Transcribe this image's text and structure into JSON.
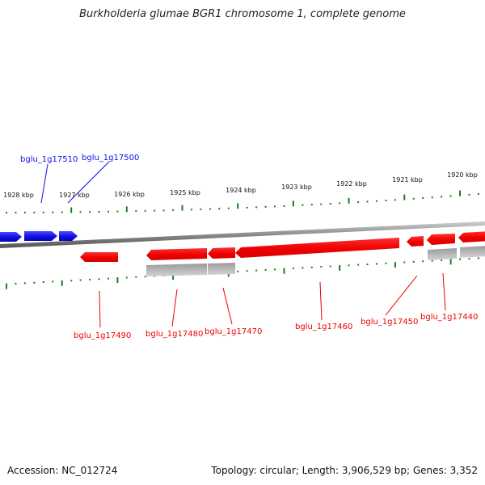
{
  "title": "Burkholderia glumae BGR1 chromosome 1, complete genome",
  "footer": {
    "accession": "Accession: NC_012724",
    "summary": "Topology: circular; Length: 3,906,529 bp; Genes: 3,352"
  },
  "colors": {
    "forward_gene": "#1010e8",
    "reverse_gene": "#ee0000",
    "cds_feature": "#b4b4b4",
    "ticks": "#1f7a1f",
    "backbone": "#808080"
  },
  "scale_labels": [
    "1928 kbp",
    "1927 kbp",
    "1926 kbp",
    "1925 kbp",
    "1924 kbp",
    "1923 kbp",
    "1922 kbp",
    "1921 kbp",
    "1920 kbp"
  ],
  "gene_labels": {
    "forward": [
      "bglu_1g17510",
      "bglu_1g17500"
    ],
    "reverse": [
      "bglu_1g17490",
      "bglu_1g17480",
      "bglu_1g17470",
      "bglu_1g17460",
      "bglu_1g17450",
      "bglu_1g17440"
    ]
  }
}
